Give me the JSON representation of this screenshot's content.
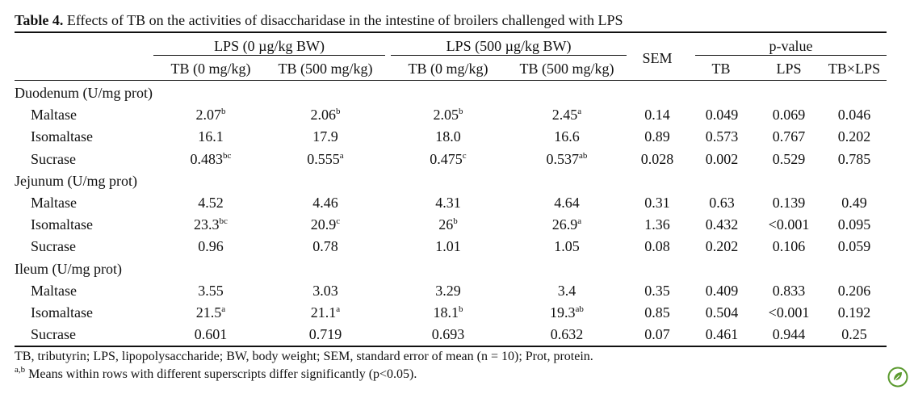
{
  "caption": {
    "label": "Table 4.",
    "text": " Effects of TB on the activities of disaccharidase in the intestine of broilers challenged with LPS"
  },
  "header": {
    "group_lps0": "LPS (0 µg/kg BW)",
    "group_lps500": "LPS (500 µg/kg BW)",
    "sem": "SEM",
    "pvalue": "p-value",
    "tb0_a": "TB (0 mg/kg)",
    "tb500_a": "TB (500 mg/kg)",
    "tb0_b": "TB (0 mg/kg)",
    "tb500_b": "TB (500 mg/kg)",
    "p_tb": "TB",
    "p_lps": "LPS",
    "p_int": "TB×LPS"
  },
  "sections": [
    {
      "title": "Duodenum (U/mg prot)",
      "rows": [
        {
          "name": "Maltase",
          "cells": [
            {
              "v": "2.07",
              "s": "b"
            },
            {
              "v": "2.06",
              "s": "b"
            },
            {
              "v": "2.05",
              "s": "b"
            },
            {
              "v": "2.45",
              "s": "a"
            },
            {
              "v": "0.14",
              "s": ""
            },
            {
              "v": "0.049",
              "s": ""
            },
            {
              "v": "0.069",
              "s": ""
            },
            {
              "v": "0.046",
              "s": ""
            }
          ]
        },
        {
          "name": "Isomaltase",
          "cells": [
            {
              "v": "16.1",
              "s": ""
            },
            {
              "v": "17.9",
              "s": ""
            },
            {
              "v": "18.0",
              "s": ""
            },
            {
              "v": "16.6",
              "s": ""
            },
            {
              "v": "0.89",
              "s": ""
            },
            {
              "v": "0.573",
              "s": ""
            },
            {
              "v": "0.767",
              "s": ""
            },
            {
              "v": "0.202",
              "s": ""
            }
          ]
        },
        {
          "name": "Sucrase",
          "cells": [
            {
              "v": "0.483",
              "s": "bc"
            },
            {
              "v": "0.555",
              "s": "a"
            },
            {
              "v": "0.475",
              "s": "c"
            },
            {
              "v": "0.537",
              "s": "ab"
            },
            {
              "v": "0.028",
              "s": ""
            },
            {
              "v": "0.002",
              "s": ""
            },
            {
              "v": "0.529",
              "s": ""
            },
            {
              "v": "0.785",
              "s": ""
            }
          ]
        }
      ]
    },
    {
      "title": "Jejunum (U/mg prot)",
      "rows": [
        {
          "name": "Maltase",
          "cells": [
            {
              "v": "4.52",
              "s": ""
            },
            {
              "v": "4.46",
              "s": ""
            },
            {
              "v": "4.31",
              "s": ""
            },
            {
              "v": "4.64",
              "s": ""
            },
            {
              "v": "0.31",
              "s": ""
            },
            {
              "v": "0.63",
              "s": ""
            },
            {
              "v": "0.139",
              "s": ""
            },
            {
              "v": "0.49",
              "s": ""
            }
          ]
        },
        {
          "name": "Isomaltase",
          "cells": [
            {
              "v": "23.3",
              "s": "bc"
            },
            {
              "v": "20.9",
              "s": "c"
            },
            {
              "v": "26",
              "s": "b"
            },
            {
              "v": "26.9",
              "s": "a"
            },
            {
              "v": "1.36",
              "s": ""
            },
            {
              "v": "0.432",
              "s": ""
            },
            {
              "v": "<0.001",
              "s": ""
            },
            {
              "v": "0.095",
              "s": ""
            }
          ]
        },
        {
          "name": "Sucrase",
          "cells": [
            {
              "v": "0.96",
              "s": ""
            },
            {
              "v": "0.78",
              "s": ""
            },
            {
              "v": "1.01",
              "s": ""
            },
            {
              "v": "1.05",
              "s": ""
            },
            {
              "v": "0.08",
              "s": ""
            },
            {
              "v": "0.202",
              "s": ""
            },
            {
              "v": "0.106",
              "s": ""
            },
            {
              "v": "0.059",
              "s": ""
            }
          ]
        }
      ]
    },
    {
      "title": "Ileum (U/mg prot)",
      "rows": [
        {
          "name": "Maltase",
          "cells": [
            {
              "v": "3.55",
              "s": ""
            },
            {
              "v": "3.03",
              "s": ""
            },
            {
              "v": "3.29",
              "s": ""
            },
            {
              "v": "3.4",
              "s": ""
            },
            {
              "v": "0.35",
              "s": ""
            },
            {
              "v": "0.409",
              "s": ""
            },
            {
              "v": "0.833",
              "s": ""
            },
            {
              "v": "0.206",
              "s": ""
            }
          ]
        },
        {
          "name": "Isomaltase",
          "cells": [
            {
              "v": "21.5",
              "s": "a"
            },
            {
              "v": "21.1",
              "s": "a"
            },
            {
              "v": "18.1",
              "s": "b"
            },
            {
              "v": "19.3",
              "s": "ab"
            },
            {
              "v": "0.85",
              "s": ""
            },
            {
              "v": "0.504",
              "s": ""
            },
            {
              "v": "<0.001",
              "s": ""
            },
            {
              "v": "0.192",
              "s": ""
            }
          ]
        },
        {
          "name": "Sucrase",
          "cells": [
            {
              "v": "0.601",
              "s": ""
            },
            {
              "v": "0.719",
              "s": ""
            },
            {
              "v": "0.693",
              "s": ""
            },
            {
              "v": "0.632",
              "s": ""
            },
            {
              "v": "0.07",
              "s": ""
            },
            {
              "v": "0.461",
              "s": ""
            },
            {
              "v": "0.944",
              "s": ""
            },
            {
              "v": "0.25",
              "s": ""
            }
          ]
        }
      ]
    }
  ],
  "footnotes": {
    "line1": "TB, tributyrin; LPS, lipopolysaccharide; BW, body weight; SEM, standard error of mean (n = 10); Prot, protein.",
    "line2_sup": "a,b",
    "line2": " Means within rows with different superscripts differ significantly (p<0.05)."
  },
  "logo_icon": "leaf-logo-icon",
  "logo_color": "#5a9a2e"
}
